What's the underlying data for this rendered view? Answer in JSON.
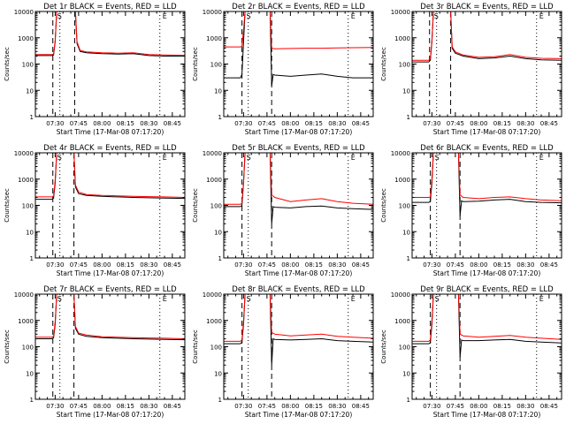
{
  "shared": {
    "xlabel": "Start Time (17-Mar-08 07:17:20)",
    "ylabel": "Counts/sec",
    "x_tick_labels": [
      "07:30",
      "07:45",
      "08:00",
      "08:15",
      "08:30",
      "08:45"
    ],
    "x_tick_minutes": [
      30,
      45,
      60,
      75,
      90,
      105
    ],
    "x_range_minutes": [
      17.33,
      113
    ],
    "y_tick_labels": [
      "1",
      "10",
      "100",
      "1000",
      "10000"
    ],
    "y_scale": "log",
    "ylim": [
      1,
      10000
    ],
    "annotation_markers": [
      "S",
      "E"
    ],
    "series_colors": {
      "events": "#000000",
      "lld": "#ff0000"
    },
    "dashed_lines_minutes": [
      [
        28.5,
        42.5
      ],
      [
        29,
        48
      ],
      [
        28.5,
        42
      ],
      [
        28.5,
        42
      ],
      [
        29,
        48
      ],
      [
        29,
        48
      ],
      [
        28.5,
        42
      ],
      [
        29,
        48
      ],
      [
        29,
        48
      ]
    ],
    "dotted_lines_minutes": [
      33,
      97
    ]
  },
  "chart_data": [
    {
      "type": "line",
      "title": "Det 1r BLACK = Events, RED = LLD",
      "series": [
        {
          "color": "#000000",
          "x": [
            17.3,
            28,
            29,
            30,
            31,
            32,
            40,
            43,
            44,
            46,
            50,
            60,
            70,
            80,
            90,
            100,
            113
          ],
          "y": [
            210,
            210,
            220,
            700,
            10000,
            10000,
            10000,
            10000,
            600,
            300,
            270,
            250,
            240,
            250,
            210,
            200,
            200
          ]
        },
        {
          "color": "#ff0000",
          "x": [
            17.3,
            28,
            29,
            30,
            31,
            32,
            40,
            43,
            44,
            46,
            50,
            60,
            70,
            80,
            90,
            100,
            113
          ],
          "y": [
            230,
            230,
            240,
            800,
            10000,
            10000,
            10000,
            10000,
            700,
            330,
            290,
            270,
            260,
            270,
            230,
            220,
            215
          ]
        }
      ]
    },
    {
      "type": "line",
      "title": "Det 2r BLACK = Events, RED = LLD",
      "series": [
        {
          "color": "#000000",
          "x": [
            17.3,
            28,
            29,
            30,
            31,
            33,
            40,
            47,
            48,
            49,
            50,
            60,
            70,
            80,
            90,
            100,
            113
          ],
          "y": [
            30,
            30,
            40,
            700,
            10000,
            10000,
            10000,
            10000,
            15,
            40,
            38,
            34,
            38,
            42,
            34,
            30,
            30
          ]
        },
        {
          "color": "#ff0000",
          "x": [
            17.3,
            28,
            29,
            30,
            31,
            33,
            40,
            47,
            48,
            50,
            60,
            70,
            80,
            90,
            100,
            113
          ],
          "y": [
            450,
            450,
            470,
            2000,
            10000,
            10000,
            10000,
            10000,
            400,
            380,
            390,
            400,
            400,
            410,
            420,
            430
          ]
        }
      ]
    },
    {
      "type": "line",
      "title": "Det 3r BLACK = Events, RED = LLD",
      "series": [
        {
          "color": "#000000",
          "x": [
            17.3,
            28,
            29,
            30,
            31,
            33,
            39,
            42,
            43,
            45,
            50,
            60,
            70,
            80,
            90,
            100,
            113
          ],
          "y": [
            120,
            120,
            140,
            700,
            10000,
            10000,
            10000,
            10000,
            400,
            260,
            200,
            160,
            170,
            200,
            160,
            145,
            140
          ]
        },
        {
          "color": "#ff0000",
          "x": [
            17.3,
            28,
            29,
            30,
            31,
            33,
            39,
            42,
            43,
            45,
            50,
            60,
            70,
            80,
            90,
            100,
            113
          ],
          "y": [
            140,
            140,
            160,
            800,
            10000,
            10000,
            10000,
            10000,
            450,
            290,
            220,
            180,
            190,
            230,
            180,
            165,
            160
          ]
        }
      ]
    },
    {
      "type": "line",
      "title": "Det 4r BLACK = Events, RED = LLD",
      "series": [
        {
          "color": "#000000",
          "x": [
            17.3,
            28,
            29,
            30,
            31,
            33,
            40,
            42,
            43,
            45,
            50,
            60,
            70,
            80,
            90,
            100,
            113
          ],
          "y": [
            170,
            170,
            190,
            700,
            10000,
            10000,
            10000,
            10000,
            500,
            280,
            240,
            220,
            210,
            200,
            195,
            190,
            185
          ]
        },
        {
          "color": "#ff0000",
          "x": [
            17.3,
            28,
            29,
            30,
            31,
            33,
            40,
            42,
            43,
            45,
            50,
            60,
            70,
            80,
            90,
            100,
            113
          ],
          "y": [
            210,
            210,
            230,
            900,
            10000,
            10000,
            10000,
            10000,
            600,
            320,
            260,
            240,
            230,
            220,
            215,
            210,
            200
          ]
        }
      ]
    },
    {
      "type": "line",
      "title": "Det 5r BLACK = Events, RED = LLD",
      "series": [
        {
          "color": "#000000",
          "x": [
            17.3,
            28,
            29,
            30,
            31,
            33,
            40,
            47,
            48,
            49,
            50,
            60,
            70,
            80,
            90,
            100,
            113
          ],
          "y": [
            90,
            90,
            100,
            700,
            10000,
            10000,
            10000,
            10000,
            20,
            90,
            85,
            80,
            90,
            95,
            80,
            75,
            70
          ]
        },
        {
          "color": "#ff0000",
          "x": [
            17.3,
            28,
            29,
            30,
            31,
            33,
            40,
            47,
            48,
            50,
            60,
            70,
            80,
            90,
            100,
            113
          ],
          "y": [
            110,
            110,
            120,
            800,
            10000,
            10000,
            10000,
            10000,
            250,
            200,
            140,
            160,
            180,
            140,
            120,
            110
          ]
        }
      ]
    },
    {
      "type": "line",
      "title": "Det 6r BLACK = Events, RED = LLD",
      "series": [
        {
          "color": "#000000",
          "x": [
            17.3,
            28,
            29,
            30,
            31,
            33,
            40,
            47,
            48,
            49,
            50,
            60,
            70,
            80,
            90,
            100,
            113
          ],
          "y": [
            130,
            130,
            140,
            700,
            10000,
            10000,
            10000,
            10000,
            40,
            150,
            140,
            145,
            160,
            170,
            140,
            130,
            125
          ]
        },
        {
          "color": "#ff0000",
          "x": [
            17.3,
            28,
            29,
            30,
            31,
            33,
            40,
            47,
            48,
            50,
            60,
            70,
            80,
            90,
            100,
            113
          ],
          "y": [
            200,
            200,
            210,
            1000,
            10000,
            10000,
            10000,
            10000,
            250,
            200,
            180,
            200,
            210,
            180,
            160,
            150
          ]
        }
      ]
    },
    {
      "type": "line",
      "title": "Det 7r BLACK = Events, RED = LLD",
      "series": [
        {
          "color": "#000000",
          "x": [
            17.3,
            28,
            29,
            30,
            31,
            33,
            40,
            42,
            43,
            45,
            50,
            60,
            70,
            80,
            90,
            100,
            113
          ],
          "y": [
            200,
            200,
            220,
            700,
            10000,
            10000,
            10000,
            10000,
            500,
            300,
            250,
            220,
            210,
            200,
            195,
            190,
            185
          ]
        },
        {
          "color": "#ff0000",
          "x": [
            17.3,
            28,
            29,
            30,
            31,
            33,
            40,
            42,
            43,
            45,
            50,
            60,
            70,
            80,
            90,
            100,
            113
          ],
          "y": [
            230,
            230,
            250,
            900,
            10000,
            10000,
            10000,
            10000,
            600,
            330,
            280,
            240,
            230,
            220,
            215,
            210,
            200
          ]
        }
      ]
    },
    {
      "type": "line",
      "title": "Det 8r BLACK = Events, RED = LLD",
      "series": [
        {
          "color": "#000000",
          "x": [
            17.3,
            28,
            29,
            30,
            31,
            33,
            40,
            47,
            48,
            49,
            50,
            60,
            70,
            80,
            90,
            100,
            113
          ],
          "y": [
            130,
            130,
            150,
            700,
            10000,
            10000,
            10000,
            10000,
            20,
            200,
            190,
            180,
            190,
            200,
            170,
            160,
            150
          ]
        },
        {
          "color": "#ff0000",
          "x": [
            17.3,
            28,
            29,
            30,
            31,
            33,
            40,
            47,
            48,
            50,
            60,
            70,
            80,
            90,
            100,
            113
          ],
          "y": [
            160,
            160,
            180,
            1000,
            10000,
            10000,
            10000,
            10000,
            350,
            300,
            260,
            280,
            300,
            250,
            230,
            210
          ]
        }
      ]
    },
    {
      "type": "line",
      "title": "Det 9r BLACK = Events, RED = LLD",
      "series": [
        {
          "color": "#000000",
          "x": [
            17.3,
            28,
            29,
            30,
            31,
            33,
            40,
            47,
            48,
            49,
            50,
            60,
            70,
            80,
            90,
            100,
            113
          ],
          "y": [
            130,
            130,
            140,
            700,
            10000,
            10000,
            10000,
            10000,
            40,
            180,
            170,
            170,
            180,
            190,
            160,
            150,
            140
          ]
        },
        {
          "color": "#ff0000",
          "x": [
            17.3,
            28,
            29,
            30,
            31,
            33,
            40,
            47,
            48,
            50,
            60,
            70,
            80,
            90,
            100,
            113
          ],
          "y": [
            160,
            160,
            180,
            1000,
            10000,
            10000,
            10000,
            10000,
            300,
            260,
            230,
            250,
            270,
            230,
            210,
            190
          ]
        }
      ]
    }
  ]
}
